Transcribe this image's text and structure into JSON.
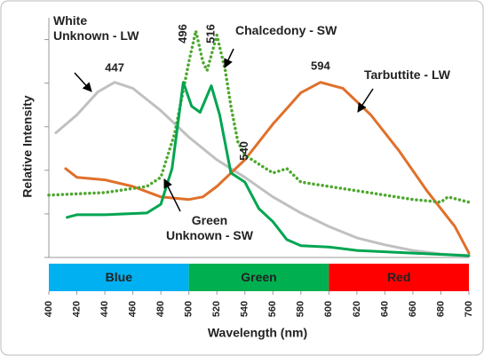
{
  "chart_data": {
    "type": "line",
    "xlabel": "Wavelength (nm)",
    "ylabel": "Relative Intensity",
    "xlim": [
      400,
      700
    ],
    "xticks": [
      400,
      420,
      440,
      460,
      480,
      500,
      520,
      540,
      560,
      580,
      600,
      620,
      640,
      660,
      680,
      700
    ],
    "ylim": [
      0,
      5.5
    ],
    "yticks": [
      0,
      1,
      2,
      3,
      4,
      5
    ],
    "series": [
      {
        "name": "White Unknown - LW",
        "color": "#c0c0c0",
        "style": "solid",
        "x": [
          405,
          420,
          435,
          447,
          460,
          480,
          500,
          520,
          540,
          560,
          580,
          600,
          620,
          640,
          660,
          680,
          700
        ],
        "values": [
          2.86,
          3.27,
          3.8,
          4.02,
          3.88,
          3.37,
          2.76,
          2.24,
          1.84,
          1.39,
          1.02,
          0.71,
          0.45,
          0.29,
          0.16,
          0.08,
          0.04
        ]
      },
      {
        "name": "Chalcedony - SW",
        "color": "#4ea72e",
        "style": "dotted",
        "x": [
          400,
          440,
          470,
          480,
          490,
          500,
          505,
          510,
          513,
          520,
          526,
          530,
          535,
          540,
          550,
          560,
          570,
          580,
          600,
          620,
          640,
          660,
          680,
          685,
          700
        ],
        "values": [
          1.43,
          1.49,
          1.63,
          1.84,
          2.86,
          4.49,
          5.2,
          4.49,
          4.29,
          5.1,
          4.29,
          3.47,
          2.65,
          2.35,
          2.14,
          1.94,
          2.04,
          1.73,
          1.63,
          1.53,
          1.43,
          1.33,
          1.27,
          1.39,
          1.27
        ]
      },
      {
        "name": "Tarbuttite - LW",
        "color": "#e0702a",
        "style": "solid",
        "x": [
          412,
          420,
          440,
          460,
          480,
          500,
          510,
          520,
          540,
          560,
          580,
          594,
          610,
          630,
          650,
          670,
          690,
          700
        ],
        "values": [
          2.04,
          1.84,
          1.78,
          1.63,
          1.39,
          1.33,
          1.39,
          1.63,
          2.24,
          3.06,
          3.78,
          4.02,
          3.88,
          3.27,
          2.45,
          1.53,
          0.71,
          0.1
        ]
      },
      {
        "name": "Green Unknown - SW",
        "color": "#00a550",
        "style": "solid",
        "x": [
          413,
          420,
          440,
          470,
          480,
          488,
          496,
          502,
          508,
          516,
          522,
          530,
          540,
          550,
          560,
          570,
          580,
          600,
          620,
          660,
          700
        ],
        "values": [
          0.92,
          0.98,
          0.98,
          1.02,
          1.22,
          2.04,
          4.02,
          3.47,
          3.33,
          3.94,
          3.27,
          1.94,
          1.73,
          1.12,
          0.82,
          0.41,
          0.27,
          0.24,
          0.16,
          0.1,
          0.04
        ]
      }
    ],
    "peak_labels": [
      447,
      496,
      516,
      540,
      594
    ],
    "bands": [
      {
        "label": "Blue",
        "color": "#00b0f0",
        "range": [
          400,
          500
        ]
      },
      {
        "label": "Green",
        "color": "#00b050",
        "range": [
          500,
          600
        ]
      },
      {
        "label": "Red",
        "color": "#ff0000",
        "range": [
          600,
          700
        ]
      }
    ]
  }
}
